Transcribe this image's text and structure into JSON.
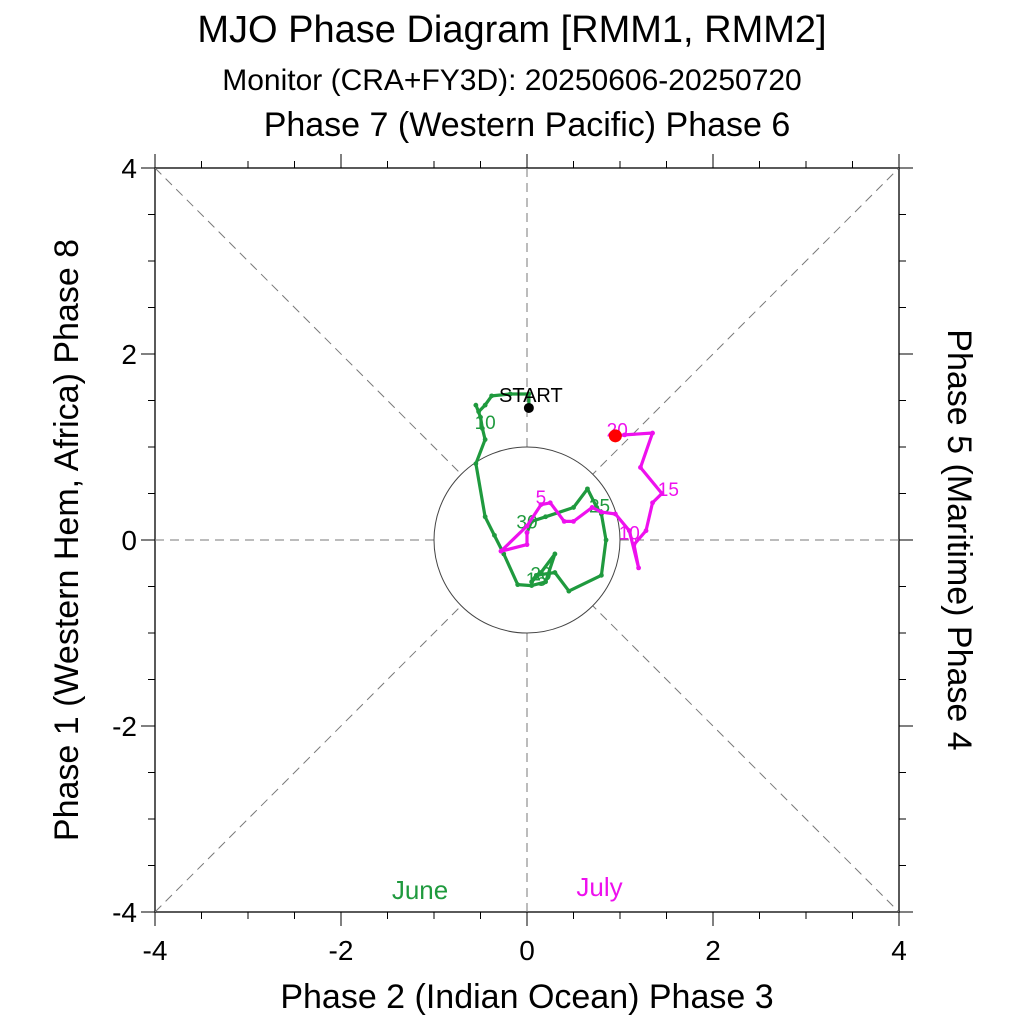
{
  "chart_data": {
    "type": "line",
    "title": "MJO Phase Diagram [RMM1, RMM2]",
    "subtitle": "Monitor (CRA+FY3D): 20250606-20250720",
    "top_label": "Phase 7 (Western Pacific) Phase 6",
    "xlabel": "Phase 2 (Indian Ocean) Phase 3",
    "ylabel": "Phase 1 (Western Hem, Africa) Phase 8",
    "right_label": "Phase 5 (Maritime) Phase 4",
    "xlim": [
      -4,
      4
    ],
    "ylim": [
      -4,
      4
    ],
    "x_ticks": [
      -4,
      -2,
      0,
      2,
      4
    ],
    "y_ticks": [
      -4,
      -2,
      0,
      2,
      4
    ],
    "x_tick_labels": [
      "-4",
      "-2",
      "0",
      "2",
      "4"
    ],
    "y_tick_labels": [
      "-4",
      "-2",
      "0",
      "2",
      "4"
    ],
    "unit_circle_radius": 1,
    "start_label": "START",
    "colors": {
      "june": "#1f9a3e",
      "july": "#ee10ee",
      "end_marker": "#ff0000",
      "start_marker": "#000000"
    },
    "series": [
      {
        "name": "June",
        "color": "#1f9a3e",
        "points": [
          [
            0.02,
            1.42
          ],
          [
            0.02,
            1.57
          ],
          [
            -0.18,
            1.57
          ],
          [
            -0.38,
            1.55
          ],
          [
            -0.45,
            1.45
          ],
          [
            -0.52,
            1.38
          ],
          [
            -0.55,
            1.45
          ],
          [
            -0.5,
            1.32
          ],
          [
            -0.48,
            1.2
          ],
          [
            -0.45,
            1.08
          ],
          [
            -0.55,
            0.82
          ],
          [
            -0.45,
            0.25
          ],
          [
            -0.35,
            0.05
          ],
          [
            -0.25,
            -0.15
          ],
          [
            -0.1,
            -0.48
          ],
          [
            0.05,
            -0.49
          ],
          [
            0.2,
            -0.45
          ],
          [
            0.3,
            -0.15
          ],
          [
            0.15,
            -0.35
          ],
          [
            0.05,
            -0.45
          ],
          [
            0.1,
            -0.38
          ],
          [
            0.3,
            -0.35
          ],
          [
            0.45,
            -0.55
          ],
          [
            0.8,
            -0.38
          ],
          [
            0.85,
            0.0
          ],
          [
            0.8,
            0.28
          ],
          [
            0.75,
            0.35
          ],
          [
            0.65,
            0.55
          ],
          [
            0.5,
            0.35
          ],
          [
            0.2,
            0.25
          ],
          [
            0.05,
            0.2
          ],
          [
            0.0,
            0.08
          ]
        ],
        "day_labels": [
          {
            "text": "10",
            "x": -0.45,
            "y": 1.27
          },
          {
            "text": "30",
            "x": 0.0,
            "y": 0.2
          },
          {
            "text": "20",
            "x": 0.15,
            "y": -0.36
          },
          {
            "text": "15",
            "x": 0.1,
            "y": -0.42
          },
          {
            "text": "25",
            "x": 0.78,
            "y": 0.37
          }
        ]
      },
      {
        "name": "July",
        "color": "#ee10ee",
        "points": [
          [
            0.0,
            0.08
          ],
          [
            0.0,
            -0.05
          ],
          [
            -0.28,
            -0.12
          ],
          [
            0.0,
            0.15
          ],
          [
            0.15,
            0.38
          ],
          [
            0.25,
            0.4
          ],
          [
            0.4,
            0.2
          ],
          [
            0.5,
            0.2
          ],
          [
            0.7,
            0.35
          ],
          [
            0.8,
            0.3
          ],
          [
            0.95,
            0.28
          ],
          [
            1.1,
            0.1
          ],
          [
            1.2,
            -0.3
          ],
          [
            1.15,
            -0.05
          ],
          [
            1.28,
            0.1
          ],
          [
            1.35,
            0.4
          ],
          [
            1.45,
            0.5
          ],
          [
            1.22,
            0.78
          ],
          [
            1.35,
            1.15
          ],
          [
            1.05,
            1.13
          ],
          [
            0.95,
            1.12
          ]
        ],
        "day_labels": [
          {
            "text": "5",
            "x": 0.15,
            "y": 0.46
          },
          {
            "text": "10",
            "x": 1.1,
            "y": 0.08
          },
          {
            "text": "15",
            "x": 1.52,
            "y": 0.55
          },
          {
            "text": "20",
            "x": 0.97,
            "y": 1.19
          }
        ]
      }
    ],
    "start_point": [
      0.02,
      1.42
    ],
    "end_point": [
      0.95,
      1.12
    ],
    "legend": [
      {
        "text": "June",
        "color": "#1f9a3e",
        "x": -1.15,
        "y": -3.75
      },
      {
        "text": "July",
        "color": "#ee10ee",
        "x": 0.78,
        "y": -3.72
      }
    ]
  }
}
